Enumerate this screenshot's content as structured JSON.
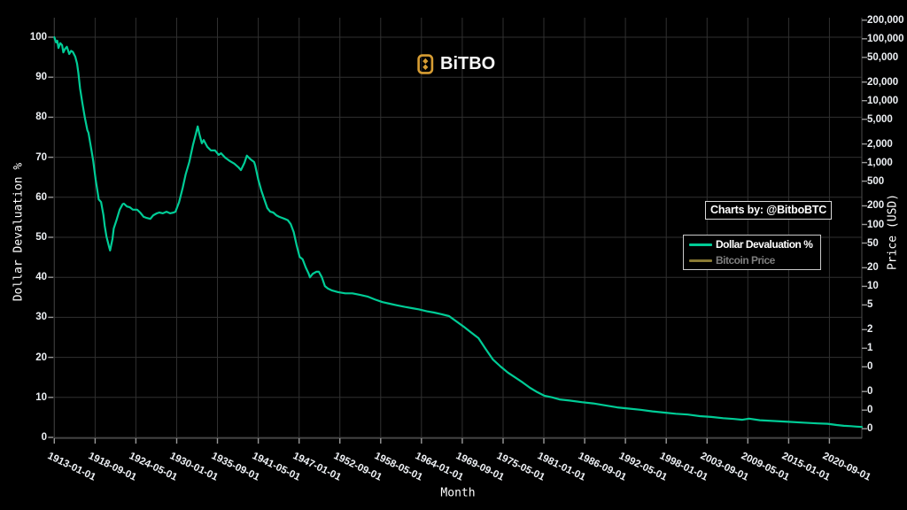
{
  "brand": {
    "name": "BiTBO",
    "icon": "bitbo-bitcoin-logo-icon",
    "accent_color": "#d79d33"
  },
  "attribution": {
    "label": "Charts by: @BitboBTC"
  },
  "legend": [
    {
      "label": "Dollar Devaluation %",
      "color": "#00cc96",
      "active": true
    },
    {
      "label": "Bitcoin Price",
      "color": "#8a7a33",
      "active": false
    }
  ],
  "chart_data": {
    "type": "line",
    "title": "",
    "xlabel": "Month",
    "ylabel_left": "Dollar Devaluation %",
    "ylabel_right": "Price (USD)",
    "background": "#000000",
    "grid": true,
    "legend_position": "right",
    "x_range": [
      "1913-01-01",
      "2025-03-01"
    ],
    "y_left_range": [
      0,
      100
    ],
    "y_left_scale": "linear",
    "y_right_scale": "log",
    "x_tick_labels": [
      "1913-01-01",
      "1918-09-01",
      "1924-05-01",
      "1930-01-01",
      "1935-09-01",
      "1941-05-01",
      "1947-01-01",
      "1952-09-01",
      "1958-05-01",
      "1964-01-01",
      "1969-09-01",
      "1975-05-01",
      "1981-01-01",
      "1986-09-01",
      "1992-05-01",
      "1998-01-01",
      "2003-09-01",
      "2009-05-01",
      "2015-01-01",
      "2020-09-01"
    ],
    "y_left_ticks": [
      100,
      90,
      80,
      70,
      60,
      50,
      40,
      30,
      20,
      10,
      0
    ],
    "y_right_tick_values": [
      200000,
      100000,
      50000,
      20000,
      10000,
      5000,
      2000,
      1000,
      500,
      200,
      100,
      50,
      20,
      10,
      5,
      2,
      1,
      0.5,
      0.2,
      0.1,
      0.05
    ],
    "y_right_tick_labels": [
      "200,000",
      "100,000",
      "50,000",
      "20,000",
      "10,000",
      "5,000",
      "2,000",
      "1,000",
      "500",
      "200",
      "100",
      "50",
      "20",
      "10",
      "5",
      "2",
      "1",
      "0",
      "0",
      "0",
      "0"
    ],
    "series": [
      {
        "name": "Dollar Devaluation %",
        "color": "#00cc96",
        "axis": "left",
        "visible": true,
        "x": [
          "1913-01",
          "1913-04",
          "1913-06",
          "1913-08",
          "1913-11",
          "1914-02",
          "1914-04",
          "1914-07",
          "1914-10",
          "1915-02",
          "1915-05",
          "1915-08",
          "1915-12",
          "1916-03",
          "1916-05",
          "1916-08",
          "1916-12",
          "1917-04",
          "1917-08",
          "1917-10",
          "1918-03",
          "1918-06",
          "1918-08",
          "1918-10",
          "1919-02",
          "1919-03",
          "1919-07",
          "1919-11",
          "1920-01",
          "1920-04",
          "1920-08",
          "1920-10",
          "1921-02",
          "1921-04",
          "1921-09",
          "1922-02",
          "1922-07",
          "1922-09",
          "1923-02",
          "1923-07",
          "1923-12",
          "1924-07",
          "1924-12",
          "1925-06",
          "1925-10",
          "1926-05",
          "1926-10",
          "1927-04",
          "1927-08",
          "1928-02",
          "1928-08",
          "1929-02",
          "1929-08",
          "1929-11",
          "1930-05",
          "1930-11",
          "1931-04",
          "1931-10",
          "1932-04",
          "1932-09",
          "1932-12",
          "1933-03",
          "1933-07",
          "1933-10",
          "1934-04",
          "1934-10",
          "1935-05",
          "1935-11",
          "1936-03",
          "1936-10",
          "1937-06",
          "1938-01",
          "1938-08",
          "1938-12",
          "1939-06",
          "1939-10",
          "1940-04",
          "1940-10",
          "1940-12",
          "1941-05",
          "1941-10",
          "1942-03",
          "1942-08",
          "1943-01",
          "1943-06",
          "1943-11",
          "1944-04",
          "1944-08",
          "1945-01",
          "1945-06",
          "1945-11",
          "1946-04",
          "1946-09",
          "1947-02",
          "1947-07",
          "1947-12",
          "1948-05",
          "1948-07",
          "1948-12",
          "1949-06",
          "1949-10",
          "1950-03",
          "1950-08",
          "1951-01",
          "1951-08",
          "1952-06",
          "1953-06",
          "1954-06",
          "1955-07",
          "1956-07",
          "1957-07",
          "1958-08",
          "1959-08",
          "1960-08",
          "1961-09",
          "1962-09",
          "1963-09",
          "1964-10",
          "1965-10",
          "1966-10",
          "1967-11",
          "1968-11",
          "1969-11",
          "1970-11",
          "1971-12",
          "1972-12",
          "1973-12",
          "1975-01",
          "1976-01",
          "1977-01",
          "1978-02",
          "1979-02",
          "1980-02",
          "1981-02",
          "1982-03",
          "1983-03",
          "1984-08",
          "1986-04",
          "1987-11",
          "1989-07",
          "1991-03",
          "1992-11",
          "1994-06",
          "1996-02",
          "1997-10",
          "1999-05",
          "2001-01",
          "2002-09",
          "2004-04",
          "2005-12",
          "2007-06",
          "2008-08",
          "2009-07",
          "2011-01",
          "2013-01",
          "2015-01",
          "2017-01",
          "2019-01",
          "2020-06",
          "2021-09",
          "2022-09",
          "2023-09",
          "2024-06",
          "2025-03"
        ],
        "y": [
          100,
          98.7,
          99.1,
          97.3,
          98.5,
          98,
          96.2,
          97.1,
          97.6,
          95.8,
          96.6,
          96.3,
          95.1,
          93.4,
          91.2,
          87.2,
          83.4,
          79.9,
          76.8,
          76.1,
          71.7,
          69,
          66.6,
          64.4,
          60.6,
          59.5,
          58.8,
          55.5,
          52.9,
          50.2,
          47.8,
          46.7,
          49.6,
          52.2,
          54.4,
          56.9,
          58.3,
          58.4,
          57.7,
          57.5,
          56.9,
          56.9,
          56.2,
          55.1,
          54.9,
          54.6,
          55.5,
          56,
          56.2,
          56,
          56.4,
          56,
          56.2,
          56.4,
          58.8,
          62.4,
          65.7,
          68.8,
          73,
          75.9,
          77.7,
          75.7,
          73.5,
          74.3,
          72.6,
          71.7,
          71.7,
          70.6,
          71,
          69.9,
          69,
          68.4,
          67.5,
          66.8,
          68.6,
          70.4,
          69.5,
          68.8,
          67.9,
          64.4,
          61.7,
          59.5,
          57.3,
          56.4,
          56.2,
          55.5,
          55.1,
          54.9,
          54.6,
          54.3,
          53.3,
          51.3,
          48,
          45.1,
          44.5,
          42.5,
          40.9,
          40,
          40.9,
          41.4,
          41.4,
          40,
          37.8,
          37.2,
          36.7,
          36.3,
          36,
          36,
          35.6,
          35.2,
          34.5,
          33.8,
          33.4,
          33,
          32.6,
          32.3,
          32,
          31.5,
          31.2,
          30.8,
          30.3,
          29,
          27.7,
          26.3,
          24.8,
          22.1,
          19.5,
          17.7,
          16.2,
          15,
          13.7,
          12.4,
          11.3,
          10.4,
          10,
          9.5,
          9.2,
          8.8,
          8.5,
          8,
          7.5,
          7.2,
          6.9,
          6.5,
          6.2,
          5.9,
          5.7,
          5.3,
          5.1,
          4.8,
          4.6,
          4.4,
          4.7,
          4.3,
          4.1,
          3.9,
          3.7,
          3.5,
          3.4,
          3.1,
          2.9,
          2.8,
          2.7,
          2.6
        ]
      },
      {
        "name": "Bitcoin Price",
        "color": "#8a7a33",
        "axis": "right",
        "visible": false,
        "x": [],
        "y": []
      }
    ]
  }
}
